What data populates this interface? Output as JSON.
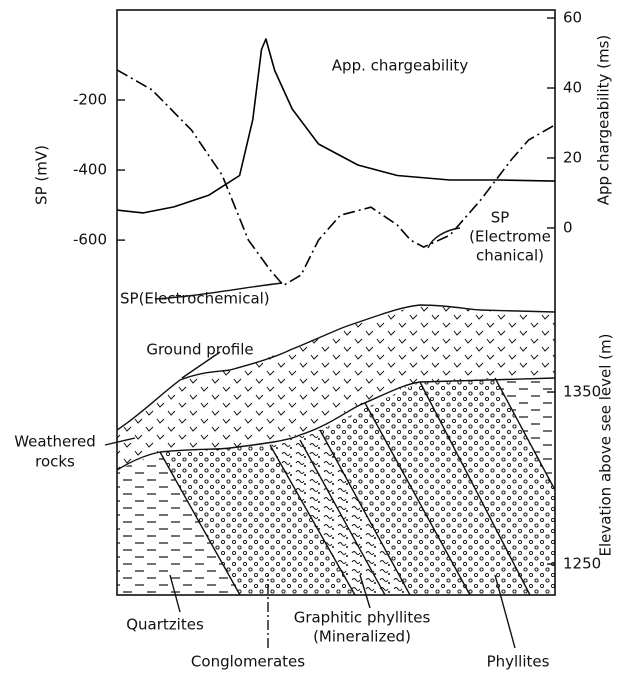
{
  "chart_data": [
    {
      "type": "line",
      "ylabel": "SP (mV)",
      "y2label": "App chargeability (ms)",
      "xlim": [
        0,
        100
      ],
      "ylim": [
        -771,
        57
      ],
      "yticks": [
        -200,
        -400,
        -600
      ],
      "y2lim": [
        -20.6,
        62.3
      ],
      "y2ticks": [
        60,
        40,
        20,
        0
      ],
      "series": [
        {
          "name": "App. chargeability",
          "color": "#000000",
          "style": "solid",
          "axis": "y2",
          "x": [
            0,
            6,
            13,
            21,
            28,
            31,
            33,
            34,
            36,
            40,
            46,
            55,
            64,
            76,
            87,
            100
          ],
          "values": [
            5.1,
            4.3,
            6,
            9.4,
            15,
            31,
            51,
            54,
            45,
            34,
            24,
            18,
            15,
            13.7,
            13.7,
            13.4
          ]
        },
        {
          "name": "SP(Electrochemical)",
          "color": "#000000",
          "style": "dashdot",
          "axis": "y",
          "x": [
            0,
            8,
            17,
            24,
            30,
            35,
            38,
            42,
            46,
            51,
            58,
            64,
            67,
            70,
            76,
            83,
            90,
            94,
            100
          ],
          "values": [
            -114,
            -171,
            -286,
            -414,
            -600,
            -686,
            -729,
            -700,
            -600,
            -529,
            -506,
            -557,
            -600,
            -620,
            -586,
            -486,
            -371,
            -314,
            -271
          ]
        }
      ],
      "annotations": [
        "SP",
        "(Electrome",
        "chanical)"
      ]
    },
    {
      "type": "section",
      "ylabel": "Elevation above see level (m)",
      "ylim": [
        1232,
        1403.5
      ],
      "yticks": [
        1350,
        1250
      ],
      "labels": {
        "ground": "Ground profile",
        "weathered": [
          "Weathered",
          "rocks"
        ],
        "quartzites": "Quartzites",
        "conglomerates": "Conglomerates",
        "graphitic": [
          "Graphitic phyllites",
          "(Mineralized)"
        ],
        "phyllites": "Phyllites"
      }
    }
  ]
}
